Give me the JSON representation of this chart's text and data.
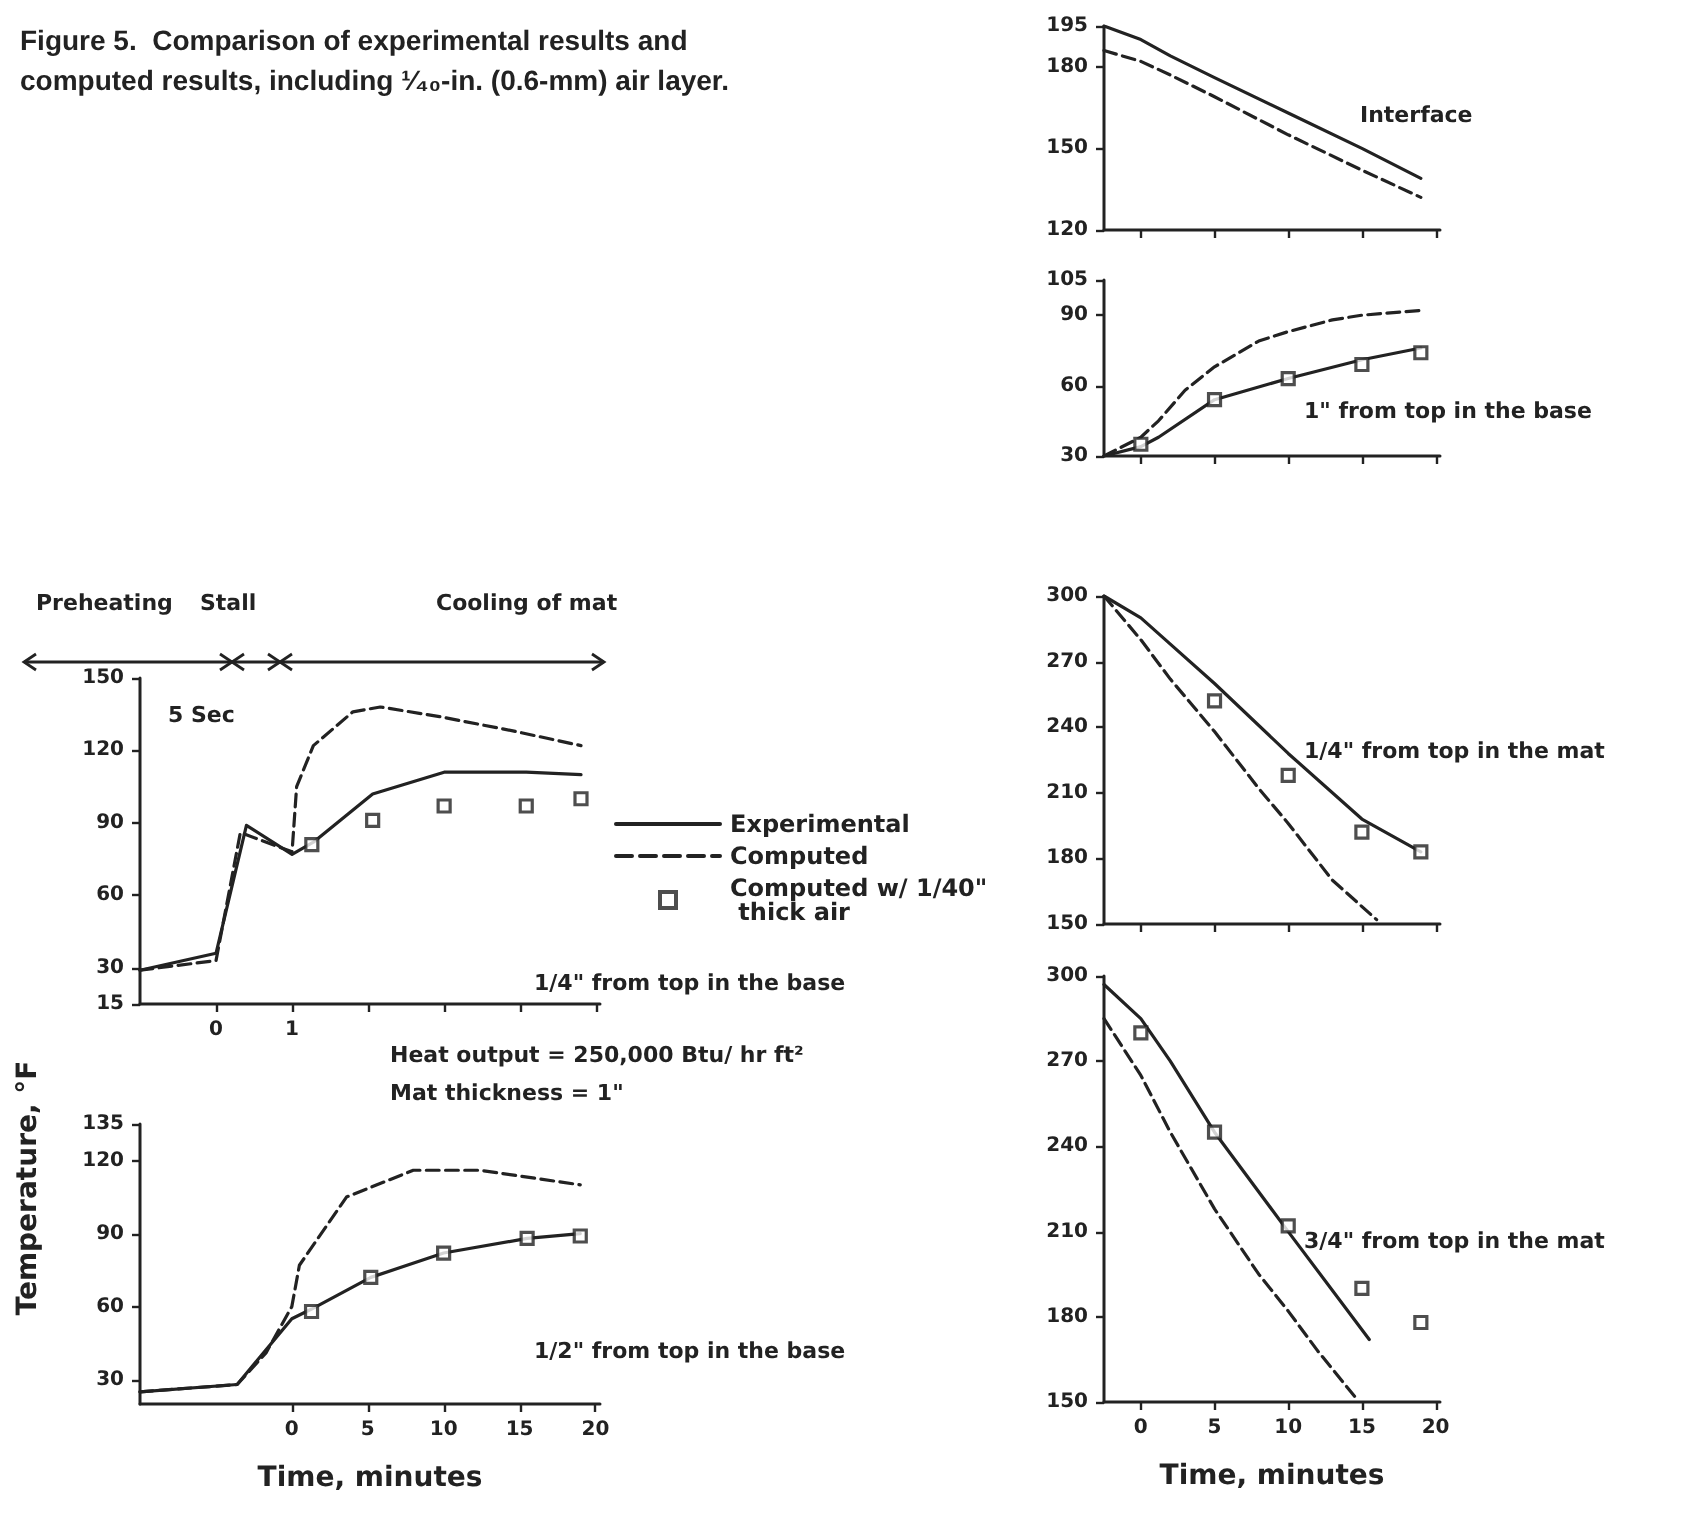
{
  "chart_data": [
    {
      "type": "line",
      "title": "Figure 5.  Comparison of experimental results and computed results, including ¹⁄₄₀-in. (0.6-mm) air layer.",
      "annotations": [
        "Preheating",
        "Stall",
        "Cooling of mat",
        "5 Sec",
        "1/4\" from top in the base"
      ],
      "xlim": [
        -1,
        5.05
      ],
      "xticks": [
        0,
        1,
        {
          "value": 2,
          "label": null
        },
        {
          "value": 3,
          "label": null
        },
        {
          "value": 4,
          "label": null
        },
        {
          "value": 5,
          "label": null
        }
      ],
      "ylim": [
        15,
        150
      ],
      "yticks": [
        15,
        30,
        60,
        90,
        120,
        150
      ],
      "legend": "right",
      "series": [
        {
          "name": "Experimental",
          "color": "#222222",
          "line_style": "solid",
          "x": [
            -1,
            0,
            0.4,
            1,
            1.28,
            2.06,
            3,
            4.08,
            4.8
          ],
          "values": [
            29,
            36,
            89,
            77,
            82,
            102,
            111,
            111,
            110
          ]
        },
        {
          "name": "Computed",
          "color": "#222222",
          "line_style": "dashed",
          "x": [
            -1,
            0,
            0.32,
            1,
            1.06,
            1.28,
            1.8,
            2.16,
            2.94,
            3.92,
            4.8
          ],
          "values": [
            29,
            33,
            86,
            78,
            105,
            122,
            136,
            138,
            134,
            128,
            122
          ]
        },
        {
          "name": "Computed w/ 1/40\" thick air",
          "type": "scatter",
          "marker": "square",
          "color": "#222222",
          "x": [
            1.26,
            2.06,
            3,
            4.08,
            4.8
          ],
          "values": [
            81,
            91,
            97,
            97,
            100
          ]
        }
      ]
    },
    {
      "type": "line",
      "xlabel": "Time, minutes",
      "ylabel": "Temperature, °F",
      "annotations": [
        "Heat output = 250,000 Btu/ hr ft²",
        "Mat thickness = 1\"",
        "1/2\" from top in the base"
      ],
      "xlim": [
        -10,
        20.3
      ],
      "xticks": [
        0,
        5,
        10,
        15,
        20
      ],
      "ylim": [
        20,
        135
      ],
      "yticks": [
        30,
        60,
        90,
        120,
        135
      ],
      "series": [
        {
          "color": "#222222",
          "line_style": "solid",
          "x": [
            -10,
            -3.6,
            0,
            1.3,
            5.2,
            10,
            15.5,
            19
          ],
          "values": [
            25,
            28,
            55,
            59,
            72,
            82,
            88,
            90
          ]
        },
        {
          "color": "#222222",
          "line_style": "dashed",
          "x": [
            -10,
            -3.6,
            -1.7,
            0,
            0.5,
            3.6,
            8,
            12.4,
            19
          ],
          "values": [
            25,
            28,
            41,
            60,
            77,
            105,
            116,
            116,
            110
          ]
        },
        {
          "type": "scatter",
          "marker": "square",
          "color": "#222222",
          "x": [
            1.3,
            5.2,
            10,
            15.5,
            19
          ],
          "values": [
            58,
            72,
            82,
            88,
            89
          ]
        }
      ]
    },
    {
      "type": "line",
      "annotations": [
        "Interface"
      ],
      "xlim": [
        -2.5,
        20.3
      ],
      "xticks": [
        0,
        5,
        10,
        15,
        20
      ],
      "ylim": [
        120,
        195
      ],
      "yticks": [
        120,
        150,
        180,
        195
      ],
      "tick_labels": "y",
      "series": [
        {
          "color": "#222222",
          "line_style": "solid",
          "x": [
            -2.5,
            0,
            2,
            5,
            10,
            15,
            19
          ],
          "values": [
            195,
            190,
            184,
            176,
            163,
            150,
            139
          ]
        },
        {
          "color": "#222222",
          "line_style": "dashed",
          "x": [
            -2.5,
            0,
            2,
            5,
            10,
            15,
            19
          ],
          "values": [
            186,
            182,
            177,
            169,
            155,
            142,
            132
          ]
        }
      ]
    },
    {
      "type": "line",
      "annotations": [
        "1\" from top in the base"
      ],
      "xlim": [
        -2.5,
        20.3
      ],
      "xticks": [
        0,
        5,
        10,
        15,
        20
      ],
      "ylim": [
        30,
        105
      ],
      "yticks": [
        30,
        60,
        90,
        105
      ],
      "tick_labels": "y",
      "series": [
        {
          "color": "#222222",
          "line_style": "solid",
          "x": [
            -2.5,
            0,
            1.2,
            5,
            10,
            15,
            19
          ],
          "values": [
            30,
            34,
            38,
            54,
            63,
            71,
            76
          ]
        },
        {
          "color": "#222222",
          "line_style": "dashed",
          "x": [
            -2.5,
            0,
            1.2,
            3,
            5,
            8,
            10,
            13,
            15,
            19
          ],
          "values": [
            30,
            38,
            45,
            58,
            68,
            79,
            83,
            88,
            90,
            92
          ]
        },
        {
          "type": "scatter",
          "marker": "square",
          "color": "#222222",
          "x": [
            0,
            5,
            10,
            15,
            19
          ],
          "values": [
            35,
            54,
            63,
            69,
            74
          ]
        }
      ]
    },
    {
      "type": "line",
      "annotations": [
        "1/4\" from top in the mat"
      ],
      "xlim": [
        -2.5,
        20.3
      ],
      "xticks": [
        0,
        5,
        10,
        15,
        20
      ],
      "ylim": [
        150,
        300
      ],
      "yticks": [
        150,
        180,
        210,
        240,
        270,
        300
      ],
      "tick_labels": "y",
      "series": [
        {
          "color": "#222222",
          "line_style": "solid",
          "x": [
            -2.5,
            0,
            2,
            5,
            10,
            15,
            19
          ],
          "values": [
            300,
            290,
            278,
            260,
            228,
            198,
            183
          ]
        },
        {
          "color": "#222222",
          "line_style": "dashed",
          "x": [
            -2.5,
            0,
            2,
            5,
            8,
            10,
            13,
            16
          ],
          "values": [
            300,
            280,
            262,
            238,
            212,
            196,
            170,
            152
          ]
        },
        {
          "type": "scatter",
          "marker": "square",
          "color": "#222222",
          "x": [
            5,
            10,
            15,
            19
          ],
          "values": [
            252,
            218,
            192,
            183
          ]
        }
      ]
    },
    {
      "type": "line",
      "xlabel": "Time, minutes",
      "annotations": [
        "3/4\" from top in the mat"
      ],
      "xlim": [
        -2.5,
        20.3
      ],
      "xticks": [
        0,
        5,
        10,
        15,
        20
      ],
      "ylim": [
        150,
        300
      ],
      "yticks": [
        150,
        180,
        210,
        240,
        270,
        300
      ],
      "series": [
        {
          "color": "#222222",
          "line_style": "solid",
          "x": [
            -2.5,
            0,
            2,
            5,
            10,
            15.5
          ],
          "values": [
            297,
            285,
            270,
            245,
            210,
            172
          ]
        },
        {
          "color": "#222222",
          "line_style": "dashed",
          "x": [
            -2.5,
            0,
            2,
            5,
            8,
            10,
            12,
            14.5
          ],
          "values": [
            285,
            265,
            245,
            218,
            195,
            182,
            168,
            152
          ]
        },
        {
          "type": "scatter",
          "marker": "square",
          "color": "#222222",
          "x": [
            0,
            5,
            10,
            15,
            19
          ],
          "values": [
            280,
            245,
            212,
            190,
            178
          ]
        }
      ]
    }
  ]
}
